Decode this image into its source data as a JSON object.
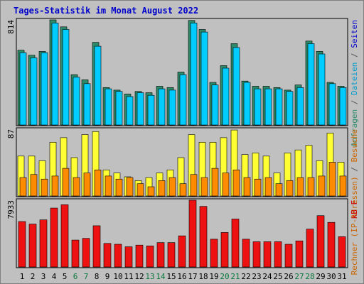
{
  "chart_data": {
    "type": "bar",
    "title": "Tages-Statistik im Monat August 2022",
    "x": [
      "1",
      "2",
      "3",
      "4",
      "5",
      "6",
      "7",
      "8",
      "9",
      "10",
      "11",
      "12",
      "13",
      "14",
      "15",
      "16",
      "17",
      "18",
      "19",
      "20",
      "21",
      "22",
      "23",
      "24",
      "25",
      "26",
      "27",
      "28",
      "29",
      "30",
      "31"
    ],
    "weekend_days": [
      "6",
      "7",
      "13",
      "14",
      "20",
      "21",
      "27",
      "28"
    ],
    "colors": {
      "background": "#c0c0c0",
      "title": "#0000cc",
      "weekday_label": "#000000",
      "weekend_label": "#0a7a3c",
      "anfragen": "#2e8b6a",
      "dateien": "#00ccff",
      "rechner": "#ffff33",
      "besuche": "#ff8c00",
      "kb": "#ee1111",
      "panel_bg": "#c0c0c0"
    },
    "panels": [
      {
        "id": "top",
        "ymax": "814",
        "ylim": [
          0,
          814
        ],
        "right_label_parts": [
          {
            "text": "Anfragen",
            "color": "#2e8b6a"
          },
          {
            "text": " / ",
            "color": "#555555"
          },
          {
            "text": "Dateien",
            "color": "#0099cc"
          },
          {
            "text": " / ",
            "color": "#555555"
          },
          {
            "text": "Seiten",
            "color": "#0000cc"
          }
        ],
        "series": [
          {
            "name": "Anfragen",
            "color": "#2e8b6a",
            "values": [
              580,
              540,
              570,
              814,
              760,
              390,
              350,
              640,
              290,
              270,
              240,
              260,
              250,
              300,
              290,
              410,
              810,
              740,
              330,
              460,
              630,
              340,
              300,
              300,
              290,
              270,
              310,
              650,
              570,
              330,
              300
            ]
          },
          {
            "name": "Dateien",
            "color": "#00ccff",
            "values": [
              560,
              520,
              560,
              790,
              740,
              370,
              320,
              610,
              280,
              260,
              220,
              250,
              230,
              280,
              270,
              390,
              790,
              720,
              310,
              440,
              600,
              330,
              280,
              280,
              280,
              260,
              290,
              630,
              550,
              320,
              290
            ]
          }
        ]
      },
      {
        "id": "middle",
        "ymax": "87",
        "ylim": [
          0,
          87
        ],
        "right_label_parts": [
          {
            "text": "Rechner (IP-Adressen)",
            "color": "#cc6600"
          },
          {
            "text": " / ",
            "color": "#555555"
          },
          {
            "text": "Besuche",
            "color": "#cc6600"
          }
        ],
        "series": [
          {
            "name": "Rechner",
            "color": "#ffff33",
            "values": [
              52,
              52,
              46,
              70,
              76,
              50,
              80,
              84,
              34,
              30,
              25,
              20,
              24,
              30,
              34,
              50,
              80,
              70,
              70,
              76,
              86,
              54,
              56,
              52,
              30,
              56,
              60,
              66,
              46,
              82,
              44
            ]
          },
          {
            "name": "Besuche",
            "color": "#ff8c00",
            "values": [
              24,
              28,
              22,
              26,
              36,
              24,
              30,
              34,
              26,
              22,
              24,
              16,
              12,
              20,
              24,
              16,
              28,
              24,
              36,
              30,
              34,
              24,
              22,
              24,
              16,
              20,
              24,
              24,
              26,
              44,
              26
            ]
          }
        ]
      },
      {
        "id": "bottom",
        "ymax": "7933",
        "ylim": [
          0,
          7933
        ],
        "right_label_parts": [
          {
            "text": "kB F",
            "color": "#cc0000"
          }
        ],
        "series": [
          {
            "name": "kB F",
            "color": "#ee1111",
            "values": [
              5400,
              5100,
              5600,
              7000,
              7400,
              3200,
              3400,
              4900,
              2800,
              2700,
              2400,
              2600,
              2500,
              2900,
              2900,
              3700,
              7933,
              7200,
              3300,
              4100,
              5700,
              3300,
              3000,
              3000,
              3000,
              2700,
              3100,
              4500,
              6100,
              5300,
              3600
            ]
          }
        ]
      }
    ]
  }
}
